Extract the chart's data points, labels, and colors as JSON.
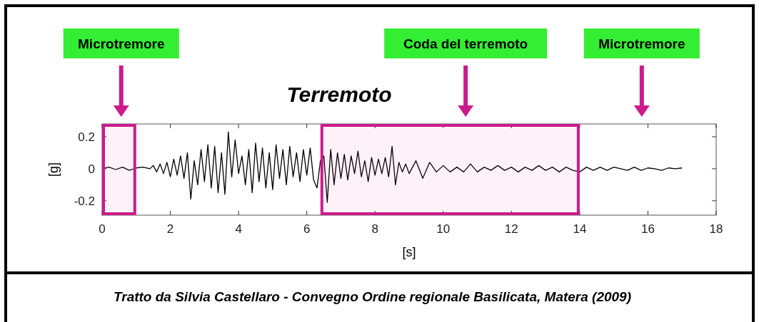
{
  "chart_data": {
    "type": "line",
    "title": "Terremoto",
    "xlabel": "[s]",
    "ylabel": "[g]",
    "xlim": [
      0,
      18
    ],
    "xticks": [
      0,
      2,
      4,
      6,
      8,
      10,
      12,
      14,
      16,
      18
    ],
    "ylim": [
      -0.29,
      0.28
    ],
    "yticks": [
      -0.2,
      0,
      0.2
    ],
    "grid": false,
    "series": [
      {
        "color": "#000000",
        "x": [
          0,
          0.2,
          0.4,
          0.6,
          0.8,
          1.0,
          1.2,
          1.4,
          1.5,
          1.6,
          1.7,
          1.8,
          1.9,
          2.0,
          2.1,
          2.2,
          2.3,
          2.4,
          2.5,
          2.6,
          2.7,
          2.8,
          2.9,
          3.0,
          3.1,
          3.2,
          3.3,
          3.4,
          3.5,
          3.6,
          3.7,
          3.8,
          3.9,
          4.0,
          4.1,
          4.2,
          4.3,
          4.4,
          4.5,
          4.6,
          4.7,
          4.8,
          4.9,
          5.0,
          5.1,
          5.2,
          5.3,
          5.4,
          5.5,
          5.6,
          5.7,
          5.8,
          5.9,
          6.0,
          6.1,
          6.2,
          6.3,
          6.4,
          6.5,
          6.6,
          6.7,
          6.8,
          6.9,
          7.0,
          7.1,
          7.2,
          7.3,
          7.4,
          7.5,
          7.6,
          7.7,
          7.8,
          7.9,
          8.0,
          8.1,
          8.2,
          8.3,
          8.4,
          8.5,
          8.6,
          8.7,
          8.8,
          8.9,
          9.0,
          9.2,
          9.4,
          9.6,
          9.8,
          10.0,
          10.2,
          10.4,
          10.6,
          10.8,
          11.0,
          11.2,
          11.4,
          11.6,
          11.8,
          12.0,
          12.2,
          12.4,
          12.6,
          12.8,
          13.0,
          13.2,
          13.4,
          13.6,
          13.8,
          14.0,
          14.2,
          14.4,
          14.6,
          14.8,
          15.0,
          15.2,
          15.4,
          15.6,
          15.8,
          16.0,
          16.2,
          16.4,
          16.6,
          16.8,
          17.0
        ],
        "values": [
          0,
          0.01,
          -0.005,
          0.01,
          -0.01,
          0.005,
          0.01,
          0,
          0.02,
          -0.02,
          0.03,
          -0.03,
          0.04,
          -0.05,
          0.06,
          -0.04,
          0.08,
          -0.06,
          0.1,
          -0.19,
          0.05,
          -0.1,
          0.12,
          -0.08,
          0.15,
          -0.12,
          0.14,
          -0.15,
          0.1,
          -0.16,
          0.23,
          -0.05,
          0.18,
          -0.03,
          0.08,
          -0.1,
          0.12,
          -0.15,
          0.16,
          -0.08,
          0.13,
          -0.12,
          0.1,
          -0.13,
          0.15,
          -0.06,
          0.12,
          -0.1,
          0.14,
          -0.05,
          0.1,
          -0.08,
          0.12,
          -0.04,
          0.13,
          -0.07,
          -0.12,
          0.05,
          0.08,
          -0.21,
          0.12,
          -0.1,
          0.1,
          -0.06,
          0.09,
          -0.07,
          0.08,
          -0.03,
          0.11,
          -0.05,
          0.05,
          -0.08,
          0.07,
          -0.04,
          0.06,
          -0.03,
          0.07,
          -0.05,
          0.14,
          -0.1,
          0.04,
          -0.02,
          0.03,
          -0.03,
          0.05,
          -0.06,
          0.04,
          -0.02,
          0.02,
          -0.02,
          0.01,
          -0.02,
          0.03,
          -0.02,
          0.01,
          -0.01,
          0.02,
          -0.01,
          0.01,
          -0.02,
          0.01,
          -0.01,
          0.02,
          -0.01,
          0.01,
          -0.02,
          0.01,
          -0.01,
          -0.02,
          0.01,
          -0.01,
          0.01,
          -0.01,
          0.01,
          0,
          -0.01,
          0.01,
          -0.01,
          0.005,
          0,
          -0.01,
          0.005,
          0,
          0.005
        ]
      }
    ],
    "bands": [
      {
        "axis": "x",
        "from": 0,
        "to": 1,
        "color": "#cc1a8c"
      },
      {
        "axis": "x",
        "from": 6.4,
        "to": 14,
        "color": "#cc1a8c"
      }
    ],
    "annotations": [
      "Microtremore",
      "Coda del terremoto",
      "Microtremore",
      "Tratto da Silvia Castellaro - Convegno Ordine regionale Basilicata, Matera (2009)"
    ]
  }
}
